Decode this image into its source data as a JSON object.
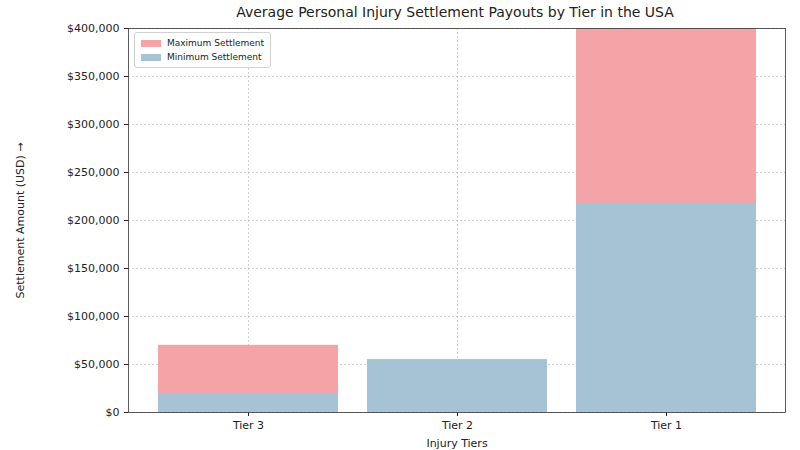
{
  "chart_data": {
    "type": "bar",
    "title": "Average Personal Injury Settlement Payouts by Tier in the USA",
    "x_label": "Injury Tiers",
    "y_label": "Settlement Amount (USD)",
    "categories": [
      "Tier 3",
      "Tier 2",
      "Tier 1"
    ],
    "series": [
      {
        "name": "Maximum Settlement",
        "color": "#f4a4a6",
        "values": [
          70000,
          55000,
          400000
        ]
      },
      {
        "name": "Minimum Settlement",
        "color": "#a6c3d6",
        "values": [
          20000,
          55000,
          218000
        ]
      }
    ],
    "ylim": [
      0,
      400000
    ],
    "yticks": [
      {
        "value": 0,
        "label": "$0"
      },
      {
        "value": 50000,
        "label": "$50,000"
      },
      {
        "value": 100000,
        "label": "$100,000"
      },
      {
        "value": 150000,
        "label": "$150,000"
      },
      {
        "value": 200000,
        "label": "$200,000"
      },
      {
        "value": 250000,
        "label": "$250,000"
      },
      {
        "value": 300000,
        "label": "$300,000"
      },
      {
        "value": 350000,
        "label": "$350,000"
      },
      {
        "value": 400000,
        "label": "$400,000"
      }
    ],
    "grid": true,
    "legend": "upper left"
  }
}
